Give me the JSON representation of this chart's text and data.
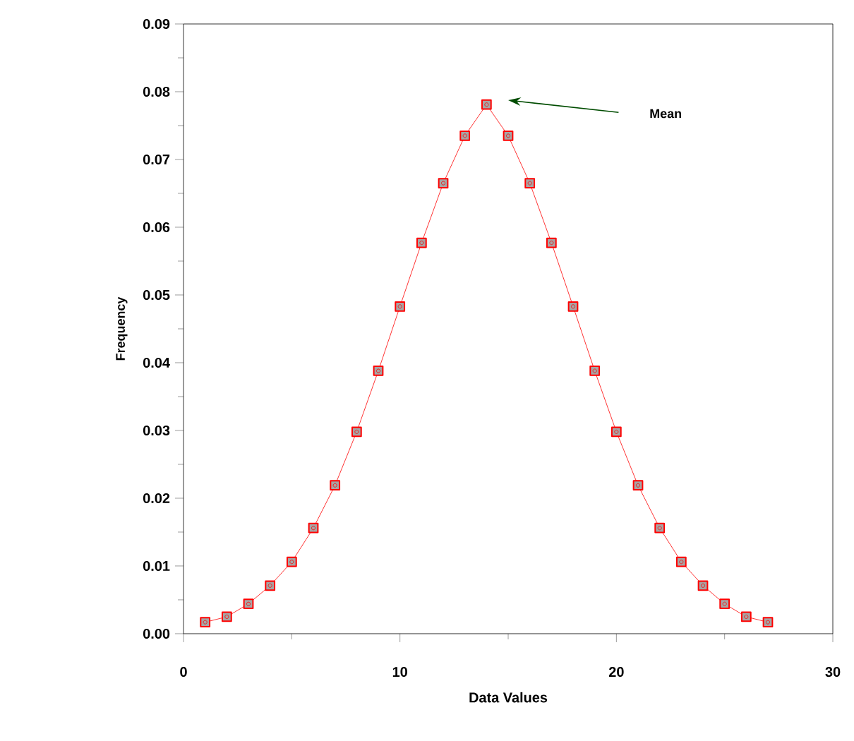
{
  "chart_data": {
    "type": "line",
    "xlabel": "Data Values",
    "ylabel": "Frequency",
    "x": [
      1,
      2,
      3,
      4,
      5,
      6,
      7,
      8,
      9,
      10,
      11,
      12,
      13,
      14,
      15,
      16,
      17,
      18,
      19,
      20,
      21,
      22,
      23,
      24,
      25,
      26,
      27
    ],
    "series": [
      {
        "color": "#ff0000",
        "values": [
          0.0017,
          0.0025,
          0.0044,
          0.0071,
          0.0106,
          0.0156,
          0.0219,
          0.0298,
          0.0388,
          0.0483,
          0.0577,
          0.0665,
          0.0735,
          0.0781,
          0.0735,
          0.0665,
          0.0577,
          0.0483,
          0.0388,
          0.0298,
          0.0219,
          0.0156,
          0.0106,
          0.0071,
          0.0044,
          0.0025,
          0.0017
        ]
      }
    ],
    "xlim": [
      0,
      30
    ],
    "ylim": [
      0,
      0.09
    ],
    "xticks": [
      0,
      10,
      20,
      30
    ],
    "yticks": [
      {
        "value": 0,
        "label": "0.00"
      },
      {
        "value": 0.01,
        "label": "0.01"
      },
      {
        "value": 0.02,
        "label": "0.02"
      },
      {
        "value": 0.03,
        "label": "0.03"
      },
      {
        "value": 0.04,
        "label": "0.04"
      },
      {
        "value": 0.05,
        "label": "0.05"
      },
      {
        "value": 0.06,
        "label": "0.06"
      },
      {
        "value": 0.07,
        "label": "0.07"
      },
      {
        "value": 0.08,
        "label": "0.08"
      },
      {
        "value": 0.09,
        "label": "0.09"
      }
    ],
    "annotations": [
      "Mean"
    ],
    "grid": false,
    "marker": "square",
    "line_style": "solid"
  }
}
